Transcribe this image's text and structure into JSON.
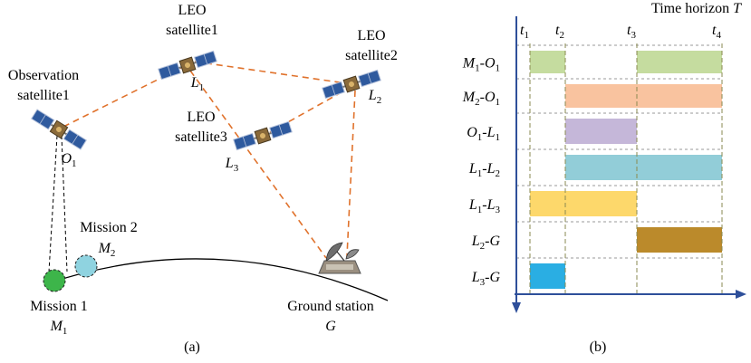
{
  "panel_a": {
    "caption": "(a)",
    "satellites": [
      {
        "label": [
          "Observation",
          "satellite1"
        ],
        "symbol": "O1"
      },
      {
        "label": [
          "LEO",
          "satellite1"
        ],
        "symbol": "L1"
      },
      {
        "label": [
          "LEO",
          "satellite2"
        ],
        "symbol": "L2"
      },
      {
        "label": [
          "LEO",
          "satellite3"
        ],
        "symbol": "L3"
      }
    ],
    "missions": [
      {
        "label": "Mission 1",
        "symbol": "M1"
      },
      {
        "label": "Mission 2",
        "symbol": "M2"
      }
    ],
    "ground_station": {
      "label": "Ground station",
      "symbol": "G"
    }
  },
  "panel_b": {
    "caption": "(b)",
    "axis_title": "Time horizon",
    "axis_symbol": "T",
    "time_points": [
      "t1",
      "t2",
      "t3",
      "t4"
    ],
    "links": [
      "M1-O1",
      "M2-O1",
      "O1-L1",
      "L1-L2",
      "L1-L3",
      "L2-G",
      "L3-G"
    ]
  }
}
